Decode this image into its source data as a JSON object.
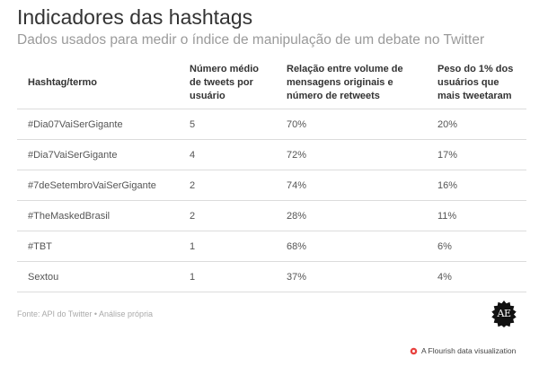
{
  "header": {
    "title": "Indicadores das hashtags",
    "subtitle": "Dados usados para medir o índice de manipulação de um debate no Twitter"
  },
  "table": {
    "columns": [
      "Hashtag/termo",
      "Número médio de tweets por usuário",
      "Relação entre volume de mensagens originais e número de retweets",
      "Peso do 1% dos usuários que mais tweetaram"
    ],
    "rows": [
      [
        "#Dia07VaiSerGigante",
        "5",
        "70%",
        "20%"
      ],
      [
        "#Dia7VaiSerGigante",
        "4",
        "72%",
        "17%"
      ],
      [
        "#7deSetembroVaiSerGigante",
        "2",
        "74%",
        "16%"
      ],
      [
        "#TheMaskedBrasil",
        "2",
        "28%",
        "11%"
      ],
      [
        "#TBT",
        "1",
        "68%",
        "6%"
      ],
      [
        "Sextou",
        "1",
        "37%",
        "4%"
      ]
    ]
  },
  "footer": {
    "source": "Fonte: API do Twitter • Análise própria",
    "logo_text": "AE",
    "logo_color": "#111111",
    "credit": "A Flourish data visualization",
    "credit_icon": "flourish-icon",
    "credit_icon_color": "#e8423f"
  }
}
